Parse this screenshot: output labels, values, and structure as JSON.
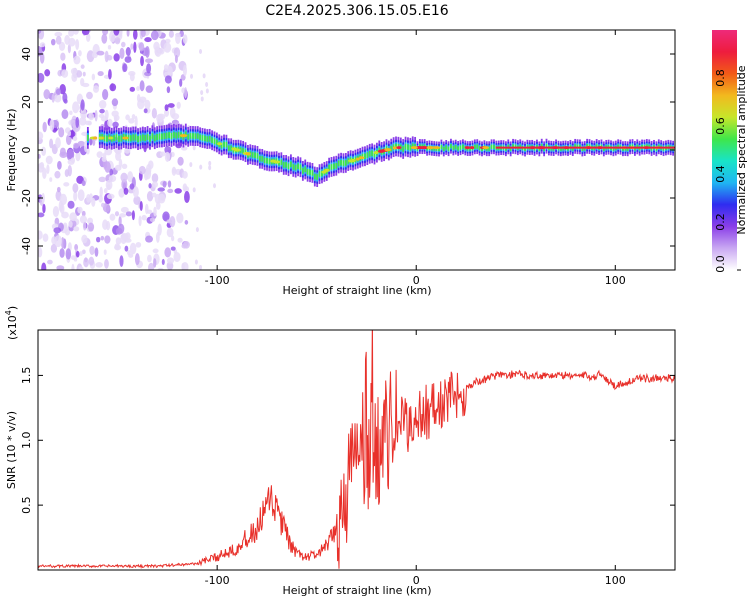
{
  "title": "C2E4.2025.306.15.05.E16",
  "chart_data": [
    {
      "type": "heatmap",
      "name": "spectrogram",
      "xlabel": "Height of straight line (km)",
      "ylabel": "Frequency (Hz)",
      "xlim": [
        -190,
        130
      ],
      "ylim": [
        -50,
        50
      ],
      "xticks": [
        -100,
        0,
        100
      ],
      "yticks": [
        -40,
        -20,
        0,
        20,
        40
      ],
      "ridge": {
        "x": [
          -165,
          -150,
          -135,
          -120,
          -110,
          -100,
          -90,
          -80,
          -70,
          -60,
          -50,
          -40,
          -30,
          -20,
          -10,
          0,
          10,
          20,
          40,
          60,
          80,
          90,
          100,
          110,
          130
        ],
        "y": [
          5,
          5,
          5,
          6,
          6,
          3,
          0,
          -3,
          -5,
          -7,
          -11,
          -6,
          -4,
          -1,
          1,
          1,
          1,
          1,
          1,
          1,
          1,
          1,
          1,
          1,
          1
        ]
      },
      "noise_region_x": [
        -190,
        -115
      ],
      "colorbar": {
        "label": "Normalized spectral amplitude",
        "ticks": [
          "0.0",
          "0.2",
          "0.4",
          "0.6",
          "0.8"
        ],
        "colors": [
          "#ffffff",
          "#c9a8f2",
          "#8a3ee8",
          "#2f2cf0",
          "#1fb6f2",
          "#18e4c8",
          "#3fe64a",
          "#c6e62a",
          "#f2b91e",
          "#f25a18",
          "#ee1c3e",
          "#ee2a7a"
        ]
      }
    },
    {
      "type": "line",
      "name": "snr",
      "xlabel": "Height of straight line (km)",
      "ylabel": "SNR (10 * v/v)",
      "multiplier_label": "(x10",
      "multiplier_exp": "4",
      "xlim": [
        -190,
        130
      ],
      "ylim": [
        0,
        1.85
      ],
      "xticks": [
        -100,
        0,
        100
      ],
      "ytick_labels": [
        "0.5",
        "1.0",
        "1.5"
      ],
      "ytick_values": [
        0.5,
        1.0,
        1.5
      ],
      "color": "#e8302a",
      "series": {
        "x": [
          -190,
          -150,
          -130,
          -110,
          -100,
          -90,
          -80,
          -76,
          -72,
          -68,
          -64,
          -60,
          -55,
          -50,
          -45,
          -40,
          -36,
          -32,
          -28,
          -24,
          -22,
          -20,
          -18,
          -15,
          -12,
          -8,
          -4,
          0,
          5,
          10,
          15,
          20,
          25,
          30,
          35,
          40,
          50,
          60,
          70,
          80,
          90,
          93,
          96,
          100,
          110,
          120,
          130
        ],
        "y": [
          0.03,
          0.03,
          0.03,
          0.05,
          0.1,
          0.18,
          0.3,
          0.45,
          0.52,
          0.38,
          0.22,
          0.12,
          0.1,
          0.12,
          0.18,
          0.3,
          0.55,
          0.8,
          1.0,
          0.75,
          1.0,
          0.9,
          0.95,
          1.05,
          1.1,
          1.15,
          1.1,
          1.18,
          1.22,
          1.25,
          1.3,
          1.35,
          1.4,
          1.45,
          1.47,
          1.5,
          1.51,
          1.5,
          1.5,
          1.5,
          1.49,
          1.52,
          1.46,
          1.42,
          1.47,
          1.48,
          1.48
        ]
      }
    }
  ]
}
